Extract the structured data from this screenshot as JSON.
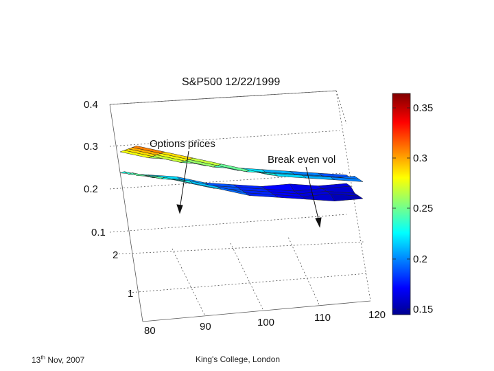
{
  "chart_data": {
    "type": "surface",
    "title": "S&P500 12/22/1999",
    "x_ticks": [
      "80",
      "90",
      "100",
      "110",
      "120"
    ],
    "y_ticks": [
      "1",
      "2"
    ],
    "z_ticks": [
      "0.1",
      "0.2",
      "0.3",
      "0.4"
    ],
    "zlim": [
      0.1,
      0.4
    ],
    "colorbar": {
      "ticks": [
        "0.15",
        "0.2",
        "0.25",
        "0.3",
        "0.35"
      ],
      "range": [
        0.14,
        0.36
      ],
      "colormap": "jet"
    },
    "annotations": [
      {
        "label": "Options prices"
      },
      {
        "label": "Break even vol"
      }
    ],
    "grid": true,
    "series": [
      {
        "surface": "options-prices",
        "strike": [
          80,
          85,
          90,
          95,
          100,
          105,
          110,
          115,
          120
        ],
        "maturity": [
          0.4,
          0.8,
          1.2,
          1.6,
          2.0
        ],
        "vol": [
          [
            0.32,
            0.3,
            0.28,
            0.26,
            0.24,
            0.22,
            0.21,
            0.2,
            0.19
          ],
          [
            0.31,
            0.29,
            0.27,
            0.25,
            0.23,
            0.22,
            0.21,
            0.2,
            0.19
          ],
          [
            0.3,
            0.28,
            0.26,
            0.24,
            0.23,
            0.21,
            0.2,
            0.19,
            0.19
          ],
          [
            0.29,
            0.27,
            0.25,
            0.24,
            0.22,
            0.21,
            0.2,
            0.19,
            0.18
          ],
          [
            0.28,
            0.26,
            0.25,
            0.23,
            0.22,
            0.21,
            0.2,
            0.19,
            0.18
          ]
        ]
      },
      {
        "surface": "break-even-vol",
        "strike": [
          80,
          85,
          90,
          95,
          100,
          105,
          110,
          115,
          120
        ],
        "maturity": [
          0.4,
          0.8,
          1.2,
          1.6,
          2.0
        ],
        "vol": [
          [
            0.25,
            0.24,
            0.22,
            0.2,
            0.18,
            0.17,
            0.16,
            0.15,
            0.15
          ],
          [
            0.25,
            0.23,
            0.22,
            0.2,
            0.18,
            0.17,
            0.16,
            0.16,
            0.15
          ],
          [
            0.24,
            0.23,
            0.21,
            0.19,
            0.18,
            0.17,
            0.16,
            0.16,
            0.15
          ],
          [
            0.24,
            0.22,
            0.21,
            0.19,
            0.18,
            0.17,
            0.16,
            0.16,
            0.16
          ],
          [
            0.23,
            0.22,
            0.21,
            0.19,
            0.18,
            0.17,
            0.17,
            0.16,
            0.16
          ]
        ]
      }
    ]
  },
  "footer": {
    "date_prefix": "13",
    "date_sup": "th",
    "date_suffix": " Nov, 2007",
    "organization": "King's College, London"
  }
}
